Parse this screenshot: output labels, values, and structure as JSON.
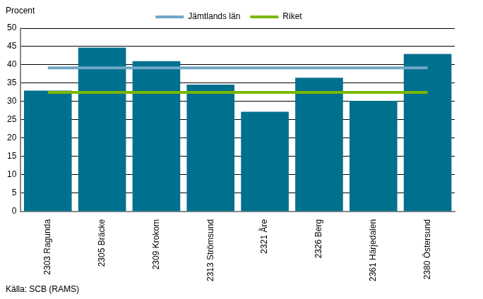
{
  "chart_data": {
    "type": "bar",
    "ylabel": "Procent",
    "source": "Källa: SCB (RAMS)",
    "categories": [
      "2303 Ragunda",
      "2305 Bräcke",
      "2309 Krokom",
      "2313 Strömsund",
      "2321 Åre",
      "2326 Berg",
      "2361 Härjedalen",
      "2380 Östersund"
    ],
    "series": [
      {
        "type": "bar",
        "color": "#00708f",
        "values": [
          33,
          44.7,
          41,
          34.6,
          27.2,
          36.5,
          30.2,
          43
        ]
      },
      {
        "name": "Jämtlands län",
        "type": "line",
        "color": "#6fa8c8",
        "values": [
          39.2,
          39.2,
          39.2,
          39.2,
          39.2,
          39.2,
          39.2,
          39.2
        ]
      },
      {
        "name": "Riket",
        "type": "line",
        "color": "#7ab800",
        "values": [
          32.5,
          32.5,
          32.5,
          32.5,
          32.5,
          32.5,
          32.5,
          32.5
        ]
      }
    ],
    "ylim": [
      0,
      50
    ],
    "yticks": [
      0,
      5,
      10,
      15,
      20,
      25,
      30,
      35,
      40,
      45,
      50
    ],
    "grid": true,
    "legend": "top"
  }
}
